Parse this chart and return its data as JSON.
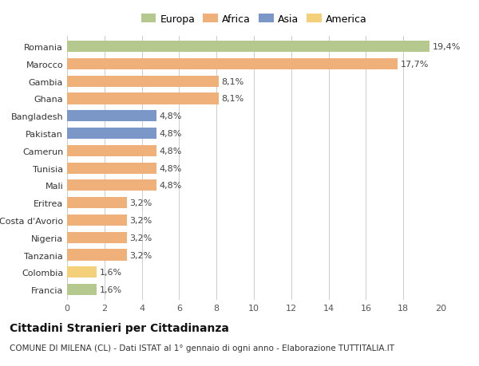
{
  "categories": [
    "Romania",
    "Marocco",
    "Gambia",
    "Ghana",
    "Bangladesh",
    "Pakistan",
    "Camerun",
    "Tunisia",
    "Mali",
    "Eritrea",
    "Costa d'Avorio",
    "Nigeria",
    "Tanzania",
    "Colombia",
    "Francia"
  ],
  "values": [
    19.4,
    17.7,
    8.1,
    8.1,
    4.8,
    4.8,
    4.8,
    4.8,
    4.8,
    3.2,
    3.2,
    3.2,
    3.2,
    1.6,
    1.6
  ],
  "labels": [
    "19,4%",
    "17,7%",
    "8,1%",
    "8,1%",
    "4,8%",
    "4,8%",
    "4,8%",
    "4,8%",
    "4,8%",
    "3,2%",
    "3,2%",
    "3,2%",
    "3,2%",
    "1,6%",
    "1,6%"
  ],
  "colors": [
    "#b5c98e",
    "#f0b07a",
    "#f0b07a",
    "#f0b07a",
    "#7a97c8",
    "#7a97c8",
    "#f0b07a",
    "#f0b07a",
    "#f0b07a",
    "#f0b07a",
    "#f0b07a",
    "#f0b07a",
    "#f0b07a",
    "#f5d07a",
    "#b5c98e"
  ],
  "legend_labels": [
    "Europa",
    "Africa",
    "Asia",
    "America"
  ],
  "legend_colors": [
    "#b5c98e",
    "#f0b07a",
    "#7a97c8",
    "#f5d07a"
  ],
  "xlim": [
    0,
    20
  ],
  "xticks": [
    0,
    2,
    4,
    6,
    8,
    10,
    12,
    14,
    16,
    18,
    20
  ],
  "title": "Cittadini Stranieri per Cittadinanza",
  "subtitle": "COMUNE DI MILENA (CL) - Dati ISTAT al 1° gennaio di ogni anno - Elaborazione TUTTITALIA.IT",
  "bg_color": "#ffffff",
  "grid_color": "#cccccc",
  "bar_height": 0.65,
  "label_fontsize": 8,
  "tick_fontsize": 8,
  "title_fontsize": 10,
  "subtitle_fontsize": 7.5,
  "legend_fontsize": 9
}
